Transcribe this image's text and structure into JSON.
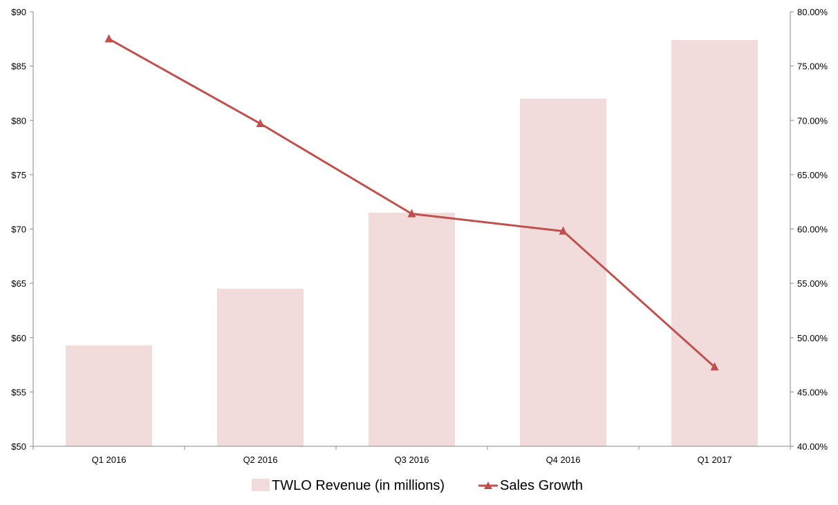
{
  "chart_data": {
    "type": "bar",
    "categories": [
      "Q1 2016",
      "Q2 2016",
      "Q3 2016",
      "Q4 2016",
      "Q1 2017"
    ],
    "series": [
      {
        "name": "TWLO Revenue (in millions)",
        "type": "bar",
        "axis": "left",
        "values": [
          59.3,
          64.5,
          71.5,
          82.0,
          87.4
        ],
        "color": "#f2dcdb"
      },
      {
        "name": "Sales Growth",
        "type": "line",
        "axis": "right",
        "marker": "triangle",
        "values": [
          0.775,
          0.697,
          0.614,
          0.598,
          0.473
        ],
        "color": "#c0504d"
      }
    ],
    "y_left": {
      "ylim": [
        50,
        90
      ],
      "ticks": [
        50,
        55,
        60,
        65,
        70,
        75,
        80,
        85,
        90
      ],
      "tick_labels": [
        "$50",
        "$55",
        "$60",
        "$65",
        "$70",
        "$75",
        "$80",
        "$85",
        "$90"
      ]
    },
    "y_right": {
      "ylim": [
        0.4,
        0.8
      ],
      "ticks": [
        0.4,
        0.45,
        0.5,
        0.55,
        0.6,
        0.65,
        0.7,
        0.75,
        0.8
      ],
      "tick_labels": [
        "40.00%",
        "45.00%",
        "50.00%",
        "55.00%",
        "60.00%",
        "65.00%",
        "70.00%",
        "75.00%",
        "80.00%"
      ]
    },
    "grid": false,
    "legend": "bottom"
  }
}
